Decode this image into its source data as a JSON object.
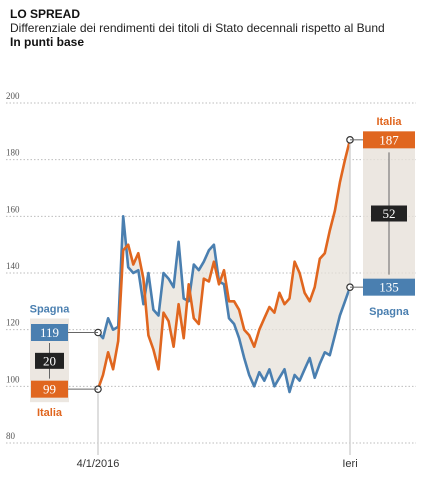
{
  "header": {
    "kicker": "LO SPREAD",
    "subtitle": "Differenziale dei rendimenti dei titoli di Stato decennali rispetto al Bund",
    "unit": "In punti base"
  },
  "colors": {
    "italia": "#e0661f",
    "spagna": "#4a7fb0",
    "spread_fill": "#e7e1da",
    "diff_box": "#222222",
    "grid": "#bdbdbd"
  },
  "chart_data": {
    "type": "line",
    "title": "LO SPREAD",
    "subtitle": "Differenziale dei rendimenti dei titoli di Stato decennali rispetto al Bund",
    "ylabel": "In punti base",
    "ylim": [
      80,
      200
    ],
    "yticks": [
      80,
      100,
      120,
      140,
      160,
      180,
      200
    ],
    "grid": true,
    "x_labels": [
      {
        "x": 0,
        "label": "4/1/2016"
      },
      {
        "x": 100,
        "label": "Ieri"
      }
    ],
    "x": [
      0,
      2,
      4,
      6,
      8,
      10,
      12,
      14,
      16,
      18,
      20,
      22,
      24,
      26,
      28,
      30,
      32,
      34,
      36,
      38,
      40,
      42,
      44,
      46,
      48,
      50,
      52,
      54,
      56,
      58,
      60,
      62,
      64,
      66,
      68,
      70,
      72,
      74,
      76,
      78,
      80,
      82,
      84,
      86,
      88,
      90,
      92,
      94,
      96,
      98,
      100
    ],
    "series": [
      {
        "name": "Italia",
        "values": [
          99,
          104,
          112,
          106,
          116,
          148,
          150,
          143,
          147,
          138,
          118,
          113,
          106,
          126,
          123,
          114,
          129,
          117,
          136,
          124,
          122,
          138,
          137,
          144,
          136,
          141,
          130,
          130,
          127,
          120,
          118,
          114,
          120,
          124,
          128,
          126,
          133,
          129,
          131,
          144,
          140,
          133,
          130,
          135,
          145,
          147,
          155,
          162,
          172,
          180,
          187
        ],
        "start_label": "99",
        "end_label": "187"
      },
      {
        "name": "Spagna",
        "values": [
          119,
          117,
          124,
          120,
          121,
          160,
          142,
          140,
          141,
          129,
          140,
          127,
          125,
          140,
          138,
          135,
          151,
          131,
          130,
          143,
          141,
          144,
          148,
          150,
          137,
          136,
          124,
          122,
          117,
          110,
          104,
          100,
          105,
          102,
          106,
          100,
          103,
          106,
          98,
          104,
          102,
          106,
          110,
          103,
          108,
          112,
          111,
          118,
          125,
          130,
          135
        ],
        "start_label": "119",
        "end_label": "135"
      }
    ],
    "annotations": [
      {
        "at": "start",
        "difference": "20"
      },
      {
        "at": "end",
        "difference": "52"
      }
    ]
  }
}
